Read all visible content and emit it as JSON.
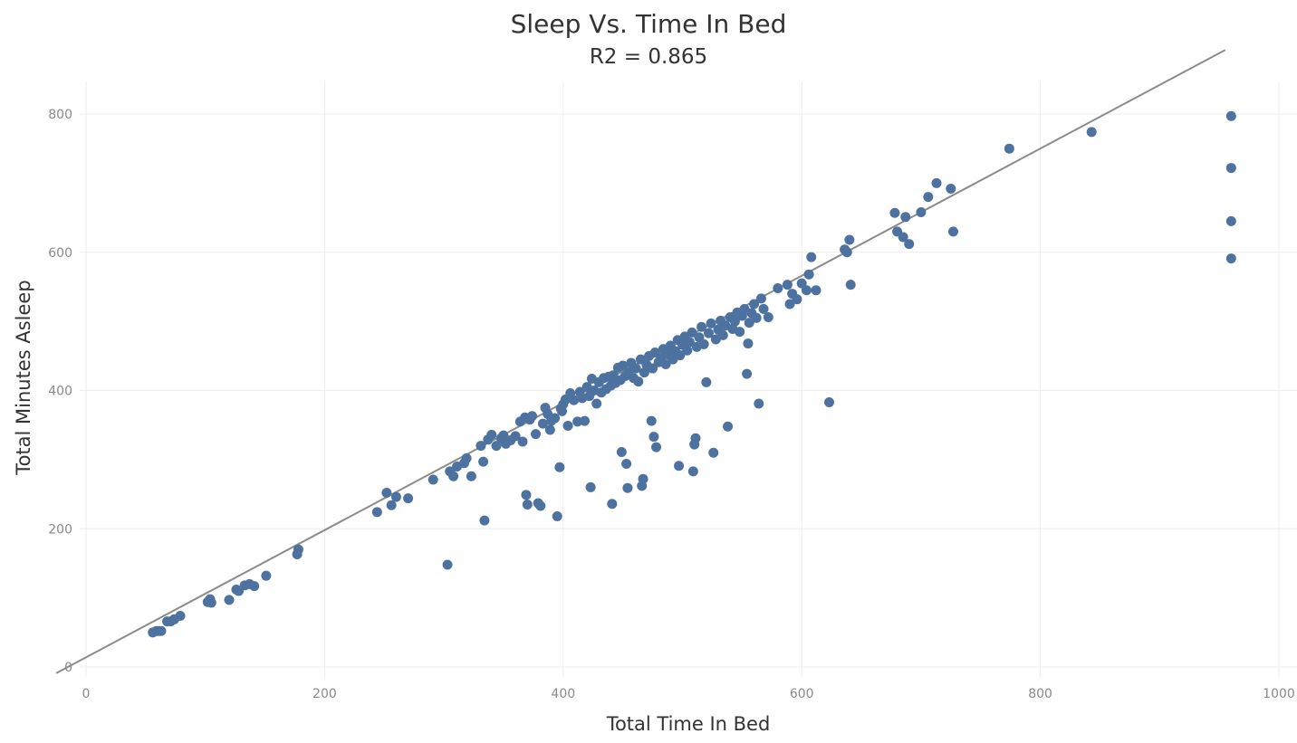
{
  "chart_data": {
    "type": "scatter",
    "title": "Sleep Vs. Time In Bed",
    "subtitle": "R2 = 0.865",
    "xlabel": "Total Time In Bed",
    "ylabel": "Total Minutes Asleep",
    "xlim": [
      0,
      1000
    ],
    "ylim": [
      0,
      800
    ],
    "x_ticks": [
      0,
      200,
      400,
      600,
      800,
      1000
    ],
    "y_ticks": [
      0,
      200,
      400,
      600,
      800
    ],
    "grid": true,
    "trend_line": {
      "slope": 0.92,
      "intercept": 14
    },
    "point_color": "#4e72a0",
    "trend_color": "#8c8c8c",
    "points": [
      [
        56,
        50
      ],
      [
        59,
        52
      ],
      [
        61,
        52
      ],
      [
        63,
        52
      ],
      [
        68,
        66
      ],
      [
        71,
        66
      ],
      [
        74,
        69
      ],
      [
        79,
        74
      ],
      [
        102,
        94
      ],
      [
        104,
        98
      ],
      [
        105,
        93
      ],
      [
        120,
        97
      ],
      [
        126,
        112
      ],
      [
        128,
        110
      ],
      [
        133,
        118
      ],
      [
        137,
        120
      ],
      [
        141,
        117
      ],
      [
        151,
        132
      ],
      [
        177,
        163
      ],
      [
        178,
        170
      ],
      [
        244,
        224
      ],
      [
        252,
        252
      ],
      [
        256,
        234
      ],
      [
        260,
        246
      ],
      [
        270,
        244
      ],
      [
        291,
        271
      ],
      [
        303,
        148
      ],
      [
        305,
        283
      ],
      [
        308,
        276
      ],
      [
        311,
        290
      ],
      [
        317,
        295
      ],
      [
        319,
        302
      ],
      [
        323,
        276
      ],
      [
        331,
        320
      ],
      [
        333,
        297
      ],
      [
        334,
        212
      ],
      [
        337,
        329
      ],
      [
        340,
        336
      ],
      [
        344,
        320
      ],
      [
        348,
        331
      ],
      [
        350,
        335
      ],
      [
        352,
        323
      ],
      [
        356,
        328
      ],
      [
        360,
        334
      ],
      [
        364,
        355
      ],
      [
        366,
        326
      ],
      [
        368,
        361
      ],
      [
        369,
        249
      ],
      [
        370,
        235
      ],
      [
        372,
        358
      ],
      [
        374,
        363
      ],
      [
        377,
        337
      ],
      [
        379,
        237
      ],
      [
        381,
        233
      ],
      [
        383,
        352
      ],
      [
        385,
        375
      ],
      [
        387,
        366
      ],
      [
        389,
        343
      ],
      [
        390,
        356
      ],
      [
        393,
        360
      ],
      [
        395,
        218
      ],
      [
        397,
        289
      ],
      [
        398,
        374
      ],
      [
        399,
        370
      ],
      [
        400,
        380
      ],
      [
        402,
        387
      ],
      [
        404,
        349
      ],
      [
        406,
        396
      ],
      [
        409,
        386
      ],
      [
        412,
        355
      ],
      [
        414,
        398
      ],
      [
        416,
        389
      ],
      [
        418,
        356
      ],
      [
        420,
        405
      ],
      [
        422,
        392
      ],
      [
        423,
        260
      ],
      [
        424,
        417
      ],
      [
        426,
        400
      ],
      [
        428,
        381
      ],
      [
        430,
        412
      ],
      [
        432,
        397
      ],
      [
        434,
        418
      ],
      [
        436,
        402
      ],
      [
        438,
        420
      ],
      [
        440,
        407
      ],
      [
        441,
        236
      ],
      [
        442,
        422
      ],
      [
        444,
        411
      ],
      [
        446,
        433
      ],
      [
        448,
        415
      ],
      [
        449,
        311
      ],
      [
        450,
        436
      ],
      [
        452,
        421
      ],
      [
        453,
        294
      ],
      [
        454,
        259
      ],
      [
        455,
        427
      ],
      [
        457,
        440
      ],
      [
        459,
        418
      ],
      [
        461,
        432
      ],
      [
        463,
        413
      ],
      [
        465,
        445
      ],
      [
        466,
        262
      ],
      [
        467,
        272
      ],
      [
        468,
        426
      ],
      [
        470,
        437
      ],
      [
        472,
        450
      ],
      [
        474,
        356
      ],
      [
        475,
        432
      ],
      [
        476,
        333
      ],
      [
        477,
        455
      ],
      [
        478,
        318
      ],
      [
        480,
        441
      ],
      [
        482,
        447
      ],
      [
        484,
        460
      ],
      [
        486,
        438
      ],
      [
        488,
        452
      ],
      [
        490,
        465
      ],
      [
        492,
        445
      ],
      [
        494,
        457
      ],
      [
        496,
        473
      ],
      [
        497,
        291
      ],
      [
        498,
        451
      ],
      [
        500,
        466
      ],
      [
        502,
        478
      ],
      [
        504,
        458
      ],
      [
        506,
        470
      ],
      [
        508,
        484
      ],
      [
        509,
        283
      ],
      [
        510,
        322
      ],
      [
        511,
        331
      ],
      [
        512,
        463
      ],
      [
        514,
        477
      ],
      [
        516,
        492
      ],
      [
        518,
        467
      ],
      [
        520,
        412
      ],
      [
        522,
        483
      ],
      [
        524,
        497
      ],
      [
        526,
        310
      ],
      [
        528,
        474
      ],
      [
        530,
        488
      ],
      [
        532,
        501
      ],
      [
        534,
        480
      ],
      [
        536,
        494
      ],
      [
        538,
        348
      ],
      [
        540,
        506
      ],
      [
        542,
        489
      ],
      [
        544,
        500
      ],
      [
        546,
        513
      ],
      [
        548,
        485
      ],
      [
        550,
        508
      ],
      [
        552,
        518
      ],
      [
        554,
        424
      ],
      [
        555,
        468
      ],
      [
        556,
        498
      ],
      [
        558,
        512
      ],
      [
        560,
        525
      ],
      [
        562,
        505
      ],
      [
        564,
        381
      ],
      [
        566,
        533
      ],
      [
        568,
        518
      ],
      [
        572,
        506
      ],
      [
        580,
        548
      ],
      [
        588,
        553
      ],
      [
        590,
        525
      ],
      [
        592,
        540
      ],
      [
        596,
        532
      ],
      [
        600,
        555
      ],
      [
        604,
        545
      ],
      [
        606,
        568
      ],
      [
        608,
        593
      ],
      [
        612,
        545
      ],
      [
        623,
        383
      ],
      [
        636,
        604
      ],
      [
        638,
        600
      ],
      [
        640,
        618
      ],
      [
        641,
        553
      ],
      [
        678,
        657
      ],
      [
        680,
        630
      ],
      [
        685,
        622
      ],
      [
        687,
        651
      ],
      [
        690,
        612
      ],
      [
        700,
        658
      ],
      [
        706,
        680
      ],
      [
        713,
        700
      ],
      [
        725,
        692
      ],
      [
        727,
        630
      ],
      [
        774,
        750
      ],
      [
        843,
        774
      ],
      [
        960,
        797
      ],
      [
        960,
        722
      ],
      [
        960,
        645
      ],
      [
        960,
        591
      ]
    ]
  }
}
